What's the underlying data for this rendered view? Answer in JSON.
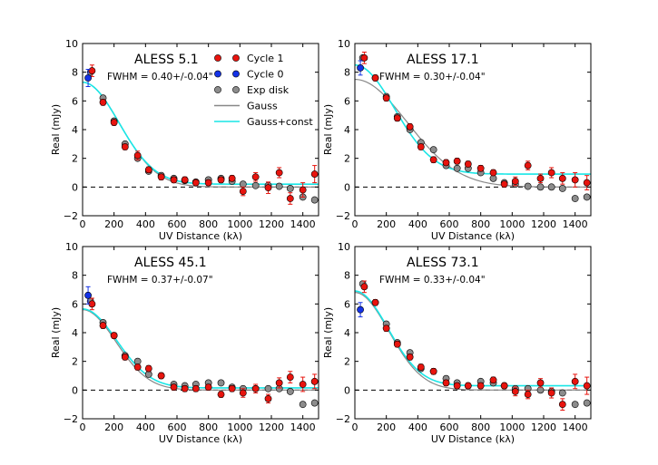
{
  "figure": {
    "colors": {
      "cycle1": "#e8140e",
      "cycle0": "#1432e6",
      "exp": "#8c8c8c",
      "gauss": "#888888",
      "gaussconst": "#19e6e6",
      "zeroline": "#000000"
    }
  },
  "legend": {
    "items": [
      {
        "label": "Cycle 1",
        "kind": "marker",
        "color": "#e8140e"
      },
      {
        "label": "Cycle 0",
        "kind": "marker",
        "color": "#1432e6"
      },
      {
        "label": "Exp disk",
        "kind": "marker",
        "color": "#8c8c8c"
      },
      {
        "label": "Gauss",
        "kind": "line",
        "color": "#888888"
      },
      {
        "label": "Gauss+const",
        "kind": "line",
        "color": "#19e6e6"
      }
    ]
  },
  "chart_data": [
    {
      "type": "scatter",
      "title": "ALESS 5.1",
      "annotation": "FWHM = 0.40+/-0.04\"",
      "xlabel": "UV Distance (kλ)",
      "ylabel": "Real (mJy)",
      "xlim": [
        0,
        1500
      ],
      "ylim": [
        -2,
        10
      ],
      "xticks": [
        0,
        200,
        400,
        600,
        800,
        1000,
        1200,
        1400
      ],
      "yticks": [
        -2,
        0,
        2,
        4,
        6,
        8,
        10
      ],
      "models": {
        "gauss": {
          "amp": 7.3,
          "sigma": 235,
          "c": 0.0
        },
        "gaussconst": {
          "amp": 7.1,
          "sigma": 230,
          "c": 0.2
        }
      },
      "series": [
        {
          "name": "Exp disk",
          "x": [
            50,
            130,
            200,
            270,
            350,
            420,
            500,
            580,
            650,
            720,
            800,
            880,
            950,
            1020,
            1100,
            1180,
            1250,
            1320,
            1400,
            1475
          ],
          "y": [
            8.0,
            6.2,
            4.6,
            3.0,
            2.0,
            1.1,
            0.8,
            0.6,
            0.45,
            0.35,
            0.5,
            0.6,
            0.4,
            0.2,
            0.1,
            0.1,
            0.05,
            -0.1,
            -0.7,
            -0.9
          ]
        },
        {
          "name": "Cycle 1",
          "x": [
            60,
            130,
            200,
            270,
            350,
            420,
            500,
            580,
            650,
            720,
            800,
            880,
            950,
            1020,
            1100,
            1180,
            1250,
            1320,
            1400,
            1475
          ],
          "y": [
            8.1,
            5.9,
            4.5,
            2.8,
            2.2,
            1.2,
            0.7,
            0.5,
            0.5,
            0.3,
            0.3,
            0.5,
            0.6,
            -0.3,
            0.7,
            -0.05,
            1.0,
            -0.8,
            -0.2,
            0.9
          ],
          "err": [
            0.4,
            0.2,
            0.2,
            0.2,
            0.3,
            0.2,
            0.2,
            0.2,
            0.2,
            0.2,
            0.2,
            0.2,
            0.2,
            0.3,
            0.3,
            0.4,
            0.35,
            0.4,
            0.5,
            0.6
          ]
        },
        {
          "name": "Cycle 0",
          "x": [
            35
          ],
          "y": [
            7.6
          ],
          "err": [
            0.6
          ]
        }
      ]
    },
    {
      "type": "scatter",
      "title": "ALESS 17.1",
      "annotation": "FWHM = 0.30+/-0.04\"",
      "xlabel": "UV Distance (kλ)",
      "ylabel": "Real (mJy)",
      "xlim": [
        0,
        1500
      ],
      "ylim": [
        -2,
        10
      ],
      "xticks": [
        0,
        200,
        400,
        600,
        800,
        1000,
        1200,
        1400
      ],
      "yticks": [
        -2,
        0,
        2,
        4,
        6,
        8,
        10
      ],
      "models": {
        "gauss": {
          "amp": 7.5,
          "sigma": 330,
          "c": 0.0
        },
        "gaussconst": {
          "amp": 7.6,
          "sigma": 250,
          "c": 0.9
        }
      },
      "series": [
        {
          "name": "Exp disk",
          "x": [
            50,
            130,
            200,
            270,
            350,
            420,
            500,
            580,
            650,
            720,
            800,
            880,
            950,
            1020,
            1100,
            1180,
            1250,
            1320,
            1400,
            1475
          ],
          "y": [
            9.0,
            7.6,
            6.3,
            4.9,
            4.0,
            3.1,
            2.6,
            1.5,
            1.3,
            1.3,
            1.0,
            0.6,
            0.3,
            0.2,
            0.05,
            0.0,
            0.0,
            -0.1,
            -0.8,
            -0.7
          ]
        },
        {
          "name": "Cycle 1",
          "x": [
            60,
            130,
            200,
            270,
            350,
            420,
            500,
            580,
            650,
            720,
            800,
            880,
            950,
            1020,
            1100,
            1180,
            1250,
            1320,
            1400,
            1475
          ],
          "y": [
            9.0,
            7.6,
            6.2,
            4.8,
            4.2,
            2.8,
            1.9,
            1.7,
            1.8,
            1.6,
            1.3,
            1.0,
            0.2,
            0.4,
            1.5,
            0.6,
            1.0,
            0.6,
            0.5,
            0.3
          ],
          "err": [
            0.4,
            0.2,
            0.2,
            0.2,
            0.2,
            0.2,
            0.2,
            0.2,
            0.2,
            0.2,
            0.2,
            0.2,
            0.2,
            0.3,
            0.3,
            0.3,
            0.35,
            0.4,
            0.5,
            0.5
          ]
        },
        {
          "name": "Cycle 0",
          "x": [
            35
          ],
          "y": [
            8.3
          ],
          "err": [
            0.5
          ]
        }
      ]
    },
    {
      "type": "scatter",
      "title": "ALESS 45.1",
      "annotation": "FWHM = 0.37+/-0.07\"",
      "xlabel": "UV Distance (kλ)",
      "ylabel": "Real (mJy)",
      "xlim": [
        0,
        1500
      ],
      "ylim": [
        -2,
        10
      ],
      "xticks": [
        0,
        200,
        400,
        600,
        800,
        1000,
        1200,
        1400
      ],
      "yticks": [
        -2,
        0,
        2,
        4,
        6,
        8,
        10
      ],
      "models": {
        "gauss": {
          "amp": 5.6,
          "sigma": 210,
          "c": 0.0
        },
        "gaussconst": {
          "amp": 5.5,
          "sigma": 215,
          "c": 0.15
        }
      },
      "series": [
        {
          "name": "Exp disk",
          "x": [
            50,
            130,
            200,
            270,
            350,
            420,
            500,
            580,
            650,
            720,
            800,
            880,
            950,
            1020,
            1100,
            1180,
            1250,
            1320,
            1400,
            1475
          ],
          "y": [
            6.2,
            4.7,
            3.8,
            2.4,
            2.0,
            1.1,
            1.0,
            0.4,
            0.3,
            0.4,
            0.5,
            0.5,
            0.2,
            0.1,
            0.1,
            0.1,
            0.1,
            -0.1,
            -1.0,
            -0.9
          ]
        },
        {
          "name": "Cycle 1",
          "x": [
            60,
            130,
            200,
            270,
            350,
            420,
            500,
            580,
            650,
            720,
            800,
            880,
            950,
            1020,
            1100,
            1180,
            1250,
            1320,
            1400,
            1475
          ],
          "y": [
            6.0,
            4.5,
            3.8,
            2.3,
            1.6,
            1.5,
            1.0,
            0.2,
            0.1,
            0.1,
            0.2,
            -0.3,
            0.1,
            -0.2,
            0.1,
            -0.6,
            0.5,
            0.9,
            0.4,
            0.6
          ],
          "err": [
            0.4,
            0.2,
            0.2,
            0.2,
            0.2,
            0.2,
            0.2,
            0.2,
            0.2,
            0.2,
            0.2,
            0.2,
            0.2,
            0.3,
            0.3,
            0.3,
            0.35,
            0.4,
            0.5,
            0.5
          ]
        },
        {
          "name": "Cycle 0",
          "x": [
            35
          ],
          "y": [
            6.6
          ],
          "err": [
            0.6
          ]
        }
      ]
    },
    {
      "type": "scatter",
      "title": "ALESS 73.1",
      "annotation": "FWHM = 0.33+/-0.04\"",
      "xlabel": "UV Distance (kλ)",
      "ylabel": "Real (mJy)",
      "xlim": [
        0,
        1500
      ],
      "ylim": [
        -2,
        10
      ],
      "xticks": [
        0,
        200,
        400,
        600,
        800,
        1000,
        1200,
        1400
      ],
      "yticks": [
        -2,
        0,
        2,
        4,
        6,
        8,
        10
      ],
      "models": {
        "gauss": {
          "amp": 6.8,
          "sigma": 215,
          "c": 0.0
        },
        "gaussconst": {
          "amp": 6.6,
          "sigma": 210,
          "c": 0.3
        }
      },
      "series": [
        {
          "name": "Exp disk",
          "x": [
            50,
            130,
            200,
            270,
            350,
            420,
            500,
            580,
            650,
            720,
            800,
            880,
            950,
            1020,
            1100,
            1180,
            1250,
            1320,
            1400,
            1475
          ],
          "y": [
            7.4,
            6.1,
            4.6,
            3.3,
            2.6,
            1.5,
            1.3,
            0.8,
            0.5,
            0.3,
            0.6,
            0.5,
            0.3,
            0.1,
            0.1,
            0.0,
            -0.1,
            -0.2,
            -1.0,
            -0.9
          ]
        },
        {
          "name": "Cycle 1",
          "x": [
            60,
            130,
            200,
            270,
            350,
            420,
            500,
            580,
            650,
            720,
            800,
            880,
            950,
            1020,
            1100,
            1180,
            1250,
            1320,
            1400,
            1475
          ],
          "y": [
            7.2,
            6.1,
            4.3,
            3.2,
            2.3,
            1.6,
            1.3,
            0.5,
            0.3,
            0.3,
            0.3,
            0.7,
            0.3,
            -0.1,
            -0.3,
            0.5,
            -0.2,
            -1.0,
            0.6,
            0.3
          ],
          "err": [
            0.4,
            0.2,
            0.2,
            0.2,
            0.2,
            0.2,
            0.2,
            0.2,
            0.2,
            0.2,
            0.2,
            0.2,
            0.2,
            0.3,
            0.3,
            0.3,
            0.35,
            0.4,
            0.5,
            0.6
          ]
        },
        {
          "name": "Cycle 0",
          "x": [
            35
          ],
          "y": [
            5.6
          ],
          "err": [
            0.5
          ]
        }
      ]
    }
  ]
}
